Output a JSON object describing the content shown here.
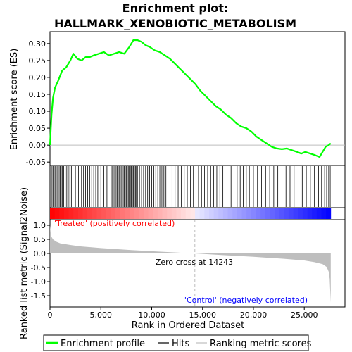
{
  "chart_data": {
    "type": "line",
    "title_line1": "Enrichment plot:",
    "title_line2": "HALLMARK_XENOBIOTIC_METABOLISM",
    "xlabel": "Rank in Ordered Dataset",
    "ylabel_top": "Enrichment score (ES)",
    "ylabel_bottom": "Ranked list metric (Signal2Noise)",
    "x_ticks": [
      0,
      5000,
      10000,
      15000,
      20000,
      25000
    ],
    "x_tick_labels": [
      "0",
      "5,000",
      "10,000",
      "15,000",
      "20,000",
      "25,000"
    ],
    "es_y_ticks": [
      -0.05,
      0.0,
      0.05,
      0.1,
      0.15,
      0.2,
      0.25,
      0.3
    ],
    "es_y_tick_labels": [
      "-0.05",
      "0.00",
      "0.05",
      "0.10",
      "0.15",
      "0.20",
      "0.25",
      "0.30"
    ],
    "es_ylim": [
      -0.06,
      0.335
    ],
    "metric_y_ticks": [
      1.0,
      0.5,
      0.0,
      -0.5,
      -1.0,
      -1.5
    ],
    "metric_y_tick_labels": [
      "1.0",
      "0.5",
      "0.0",
      "-0.5",
      "-1.0",
      "-1.5"
    ],
    "metric_ylim": [
      -1.9,
      1.2
    ],
    "xlim": [
      0,
      29000
    ],
    "n_genes": 27600,
    "zero_cross_rank": 14243,
    "zero_cross_label": "Zero cross at 14243",
    "treated_label": "'Treated' (positively correlated)",
    "control_label": "'Control' (negatively correlated)",
    "es_curve": {
      "x": [
        0,
        150,
        300,
        500,
        800,
        1200,
        1600,
        2000,
        2300,
        2700,
        3100,
        3500,
        3900,
        4300,
        4800,
        5300,
        5800,
        6300,
        6800,
        7300,
        7800,
        8200,
        8600,
        9000,
        9400,
        9800,
        10300,
        10800,
        11300,
        11800,
        12300,
        12800,
        13300,
        13800,
        14300,
        14800,
        15300,
        15800,
        16300,
        16800,
        17300,
        17800,
        18300,
        18800,
        19300,
        19800,
        20300,
        20800,
        21300,
        21800,
        22300,
        22800,
        23300,
        23800,
        24300,
        24700,
        25100,
        25600,
        26100,
        26500,
        26800,
        27100,
        27400,
        27600
      ],
      "y": [
        0.0,
        0.09,
        0.14,
        0.17,
        0.19,
        0.22,
        0.23,
        0.25,
        0.27,
        0.255,
        0.25,
        0.26,
        0.26,
        0.265,
        0.27,
        0.275,
        0.265,
        0.27,
        0.275,
        0.27,
        0.29,
        0.31,
        0.31,
        0.305,
        0.295,
        0.29,
        0.28,
        0.275,
        0.265,
        0.255,
        0.24,
        0.225,
        0.21,
        0.195,
        0.18,
        0.16,
        0.145,
        0.13,
        0.115,
        0.105,
        0.09,
        0.08,
        0.065,
        0.055,
        0.05,
        0.04,
        0.025,
        0.015,
        0.005,
        -0.005,
        -0.01,
        -0.012,
        -0.01,
        -0.015,
        -0.02,
        -0.025,
        -0.02,
        -0.025,
        -0.03,
        -0.035,
        -0.02,
        -0.005,
        0.0,
        0.005
      ]
    },
    "hits": [
      0,
      100,
      200,
      300,
      400,
      500,
      600,
      700,
      800,
      900,
      1000,
      1100,
      1200,
      1350,
      1500,
      1650,
      1800,
      1950,
      2100,
      2250,
      2500,
      2800,
      3100,
      3300,
      3500,
      3700,
      3900,
      4100,
      4300,
      4500,
      4700,
      5000,
      5300,
      5600,
      6000,
      6100,
      6200,
      6300,
      6400,
      6500,
      6600,
      6700,
      6800,
      6900,
      7000,
      7100,
      7200,
      7300,
      7400,
      7500,
      7600,
      7700,
      7800,
      7900,
      8000,
      8100,
      8200,
      8300,
      8400,
      8500,
      8600,
      8800,
      9000,
      9200,
      9400,
      9600,
      9800,
      10000,
      10200,
      10400,
      10600,
      10800,
      11000,
      11200,
      11400,
      11600,
      11800,
      12000,
      12300,
      12600,
      12900,
      13200,
      13500,
      13800,
      14100,
      14600,
      14900,
      15200,
      15500,
      15800,
      16100,
      16400,
      16700,
      17000,
      17400,
      17800,
      18100,
      18400,
      18700,
      19000,
      19300,
      19600,
      20000,
      20400,
      20800,
      21200,
      21600,
      22000,
      22400,
      22800,
      23200,
      23600,
      24000,
      24400,
      24800,
      25200,
      25600,
      26000,
      26400,
      26700,
      27000,
      27200,
      27400,
      27550
    ],
    "metric_curve": {
      "x": [
        0,
        100,
        300,
        600,
        1000,
        2000,
        3000,
        5000,
        8000,
        11000,
        14243,
        17000,
        20000,
        23000,
        25000,
        26000,
        26800,
        27200,
        27400,
        27500,
        27600
      ],
      "y": [
        1.0,
        0.62,
        0.5,
        0.42,
        0.36,
        0.3,
        0.25,
        0.19,
        0.12,
        0.06,
        0.0,
        -0.06,
        -0.12,
        -0.19,
        -0.25,
        -0.31,
        -0.38,
        -0.48,
        -0.65,
        -0.9,
        -1.75
      ]
    },
    "legend": {
      "items": [
        "Enrichment profile",
        "Hits",
        "Ranking metric scores"
      ],
      "colors": [
        "#00ff00",
        "#000000",
        "#bebebe"
      ]
    },
    "colors": {
      "es_line": "#00ff00",
      "hits": "#000000",
      "metric_fill": "#bebebe",
      "zero_cross_line": "#bebebe",
      "bar_positive": "#ff0000",
      "bar_negative": "#0000ff"
    }
  }
}
